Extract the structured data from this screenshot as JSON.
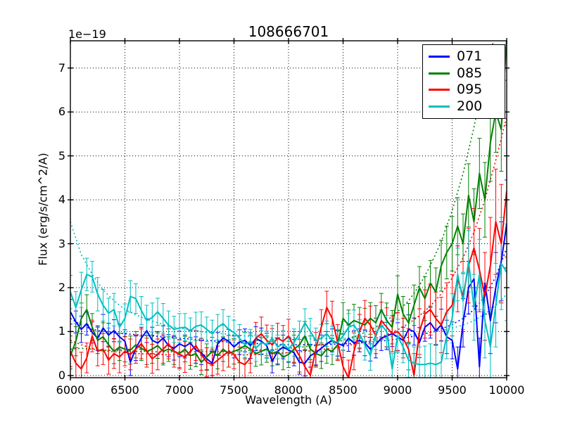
{
  "figure": {
    "title": "108666701",
    "xlabel": "Wavelength (A)",
    "ylabel": "Flux (erg/s/cm^2/A)",
    "offset_text": "1e−19",
    "background": "#ffffff"
  },
  "legend": {
    "position": "upper right",
    "items": [
      {
        "label": "071",
        "color": "#0000ff"
      },
      {
        "label": "085",
        "color": "#008000"
      },
      {
        "label": "095",
        "color": "#ff0000"
      },
      {
        "label": "200",
        "color": "#00bfbf"
      }
    ]
  },
  "chart_data": {
    "type": "line",
    "title": "108666701",
    "xlabel": "Wavelength (A)",
    "ylabel": "Flux (erg/s/cm^2/A)",
    "y_scale_factor": "1e-19",
    "xlim": [
      6000,
      10000
    ],
    "ylim": [
      -0.05,
      7.62
    ],
    "xticks": [
      6000,
      6500,
      7000,
      7500,
      8000,
      8500,
      9000,
      9500,
      10000
    ],
    "yticks": [
      0,
      1,
      2,
      3,
      4,
      5,
      6,
      7
    ],
    "grid": true,
    "grid_style": "dotted",
    "legend_position": "upper right",
    "x_start": 6000,
    "x_step": 50,
    "series": [
      {
        "name": "071",
        "color": "#0000ff",
        "style": "solid",
        "values": [
          1.45,
          1.22,
          1.05,
          1.18,
          0.98,
          0.85,
          1.08,
          0.92,
          1.02,
          0.88,
          0.78,
          0.3,
          0.62,
          0.85,
          1.02,
          0.8,
          0.74,
          0.85,
          0.68,
          0.62,
          0.72,
          0.66,
          0.74,
          0.58,
          0.52,
          0.38,
          0.28,
          0.72,
          0.85,
          0.78,
          0.65,
          0.76,
          0.8,
          0.68,
          0.84,
          0.78,
          0.68,
          0.32,
          0.55,
          0.65,
          0.58,
          0.52,
          0.3,
          0.28,
          0.45,
          0.52,
          0.62,
          0.72,
          0.8,
          0.73,
          0.68,
          0.85,
          0.74,
          0.8,
          0.74,
          0.6,
          0.7,
          0.85,
          0.9,
          0.95,
          0.88,
          0.8,
          1.05,
          1.0,
          0.75,
          1.1,
          1.2,
          1.02,
          1.15,
          0.88,
          0.8,
          0.15,
          1.2,
          2.0,
          2.2,
          0.2,
          2.1,
          1.25,
          2.0,
          2.6,
          3.45
        ],
        "errors": [
          0.28,
          0.25,
          0.3,
          0.26,
          0.24,
          0.28,
          0.31,
          0.27,
          0.25,
          0.29,
          0.26,
          0.3,
          0.28,
          0.25,
          0.27,
          0.3,
          0.26,
          0.28,
          0.25,
          0.27,
          0.29,
          0.26,
          0.28,
          0.3,
          0.27,
          0.25,
          0.28,
          0.26,
          0.3,
          0.27,
          0.25,
          0.28,
          0.26,
          0.29,
          0.27,
          0.3,
          0.28,
          0.26,
          0.29,
          0.27,
          0.28,
          0.3,
          0.27,
          0.29,
          0.26,
          0.28,
          0.3,
          0.28,
          0.26,
          0.29,
          0.27,
          0.3,
          0.28,
          0.26,
          0.29,
          0.27,
          0.3,
          0.28,
          0.31,
          0.29,
          0.32,
          0.3,
          0.33,
          0.31,
          0.34,
          0.32,
          0.35,
          0.33,
          0.36,
          0.38,
          0.42,
          0.5,
          0.55,
          0.6,
          0.62,
          0.65,
          0.7,
          0.75,
          0.8,
          0.9,
          1.0
        ]
      },
      {
        "name": "085",
        "color": "#008000",
        "style": "solid",
        "values": [
          0.45,
          0.78,
          1.3,
          1.5,
          1.1,
          0.8,
          0.88,
          0.7,
          0.55,
          0.65,
          0.6,
          0.58,
          0.7,
          0.62,
          0.55,
          0.6,
          0.68,
          0.55,
          0.6,
          0.55,
          0.5,
          0.6,
          0.45,
          0.5,
          0.3,
          0.42,
          0.55,
          0.45,
          0.6,
          0.5,
          0.55,
          0.6,
          0.68,
          0.6,
          0.5,
          0.55,
          0.6,
          0.5,
          0.55,
          0.42,
          0.48,
          0.6,
          0.7,
          0.9,
          0.6,
          0.5,
          0.45,
          0.6,
          0.55,
          0.7,
          1.3,
          1.15,
          1.25,
          1.2,
          1.15,
          1.3,
          1.2,
          1.5,
          1.25,
          1.1,
          1.85,
          1.4,
          1.2,
          1.6,
          2.0,
          1.75,
          2.1,
          1.9,
          2.5,
          2.8,
          3.0,
          3.4,
          3.0,
          4.1,
          3.5,
          4.6,
          4.0,
          5.3,
          6.0,
          5.6,
          7.7
        ],
        "errors": [
          0.3,
          0.33,
          0.35,
          0.34,
          0.31,
          0.3,
          0.32,
          0.3,
          0.28,
          0.31,
          0.29,
          0.32,
          0.3,
          0.28,
          0.3,
          0.32,
          0.29,
          0.31,
          0.28,
          0.3,
          0.32,
          0.29,
          0.31,
          0.3,
          0.28,
          0.3,
          0.32,
          0.3,
          0.28,
          0.31,
          0.29,
          0.31,
          0.3,
          0.32,
          0.29,
          0.31,
          0.3,
          0.28,
          0.31,
          0.29,
          0.3,
          0.32,
          0.3,
          0.33,
          0.3,
          0.31,
          0.29,
          0.32,
          0.3,
          0.33,
          0.36,
          0.34,
          0.37,
          0.35,
          0.38,
          0.36,
          0.39,
          0.37,
          0.4,
          0.38,
          0.42,
          0.4,
          0.44,
          0.46,
          0.48,
          0.5,
          0.52,
          0.55,
          0.58,
          0.6,
          0.62,
          0.65,
          0.68,
          0.72,
          0.75,
          0.8,
          0.85,
          0.88,
          0.92,
          0.95,
          0.98
        ]
      },
      {
        "name": "095",
        "color": "#ff0000",
        "style": "solid",
        "values": [
          0.55,
          0.28,
          0.15,
          0.4,
          0.9,
          0.55,
          0.6,
          0.35,
          0.5,
          0.42,
          0.55,
          0.48,
          0.6,
          0.72,
          0.55,
          0.38,
          0.48,
          0.6,
          0.72,
          0.55,
          0.48,
          0.42,
          0.55,
          0.68,
          0.48,
          0.3,
          0.25,
          0.35,
          0.45,
          0.55,
          0.48,
          0.3,
          0.25,
          0.4,
          0.85,
          0.95,
          0.8,
          0.7,
          0.85,
          0.78,
          0.9,
          0.65,
          0.45,
          0.2,
          0.0,
          0.6,
          1.1,
          1.55,
          1.3,
          0.75,
          0.2,
          -0.05,
          0.55,
          1.0,
          1.3,
          1.15,
          0.9,
          1.25,
          1.1,
          0.95,
          1.0,
          0.85,
          0.6,
          0.0,
          1.0,
          1.4,
          1.5,
          1.3,
          1.15,
          1.45,
          1.6,
          2.2,
          1.8,
          2.5,
          2.9,
          2.4,
          1.8,
          2.5,
          3.5,
          3.0,
          4.2
        ],
        "errors": [
          0.35,
          0.35,
          0.38,
          0.34,
          0.36,
          0.33,
          0.35,
          0.32,
          0.34,
          0.36,
          0.33,
          0.35,
          0.32,
          0.34,
          0.36,
          0.33,
          0.35,
          0.32,
          0.34,
          0.36,
          0.33,
          0.35,
          0.32,
          0.34,
          0.36,
          0.33,
          0.35,
          0.32,
          0.34,
          0.36,
          0.33,
          0.35,
          0.37,
          0.34,
          0.36,
          0.38,
          0.35,
          0.37,
          0.34,
          0.36,
          0.38,
          0.35,
          0.37,
          0.39,
          0.36,
          0.38,
          0.4,
          0.37,
          0.39,
          0.41,
          0.38,
          0.4,
          0.42,
          0.39,
          0.41,
          0.43,
          0.4,
          0.42,
          0.44,
          0.41,
          0.43,
          0.45,
          0.47,
          0.5,
          0.52,
          0.55,
          0.58,
          0.6,
          0.63,
          0.66,
          0.7,
          0.75,
          0.8,
          0.85,
          0.9,
          0.95,
          1.0,
          1.1,
          1.2,
          1.35,
          1.5
        ]
      },
      {
        "name": "200",
        "color": "#00bfbf",
        "style": "solid",
        "values": [
          1.9,
          1.55,
          1.95,
          2.3,
          2.25,
          1.85,
          1.6,
          1.42,
          1.5,
          1.1,
          1.3,
          1.8,
          1.75,
          1.48,
          1.25,
          1.32,
          1.45,
          1.3,
          1.15,
          1.05,
          1.08,
          1.1,
          1.02,
          1.12,
          1.15,
          1.05,
          0.95,
          1.1,
          1.18,
          1.05,
          0.98,
          0.85,
          0.7,
          0.78,
          0.62,
          0.75,
          0.7,
          0.85,
          0.65,
          0.72,
          0.6,
          0.75,
          0.95,
          1.2,
          1.0,
          0.8,
          0.85,
          0.95,
          0.8,
          0.75,
          0.9,
          1.1,
          1.15,
          0.95,
          0.7,
          0.45,
          0.95,
          1.15,
          1.0,
          0.15,
          0.9,
          0.65,
          0.35,
          0.28,
          0.25,
          0.25,
          0.28,
          0.25,
          0.3,
          0.9,
          1.3,
          2.3,
          1.7,
          2.6,
          1.55,
          2.3,
          1.25,
          0.65,
          1.6,
          2.55,
          2.35
        ],
        "errors": [
          0.38,
          0.36,
          0.4,
          0.37,
          0.35,
          0.38,
          0.36,
          0.34,
          0.37,
          0.35,
          0.33,
          0.36,
          0.34,
          0.32,
          0.35,
          0.33,
          0.31,
          0.34,
          0.32,
          0.3,
          0.33,
          0.31,
          0.29,
          0.32,
          0.3,
          0.28,
          0.31,
          0.29,
          0.32,
          0.3,
          0.28,
          0.31,
          0.29,
          0.27,
          0.3,
          0.28,
          0.31,
          0.29,
          0.27,
          0.3,
          0.28,
          0.31,
          0.29,
          0.32,
          0.3,
          0.28,
          0.31,
          0.29,
          0.32,
          0.3,
          0.33,
          0.31,
          0.34,
          0.32,
          0.35,
          0.33,
          0.36,
          0.34,
          0.37,
          0.35,
          0.38,
          0.36,
          0.39,
          0.37,
          0.4,
          0.42,
          0.44,
          0.46,
          0.48,
          0.52,
          0.56,
          0.6,
          0.65,
          0.7,
          0.75,
          0.8,
          0.85,
          0.9,
          0.95,
          1.05,
          1.1
        ]
      }
    ],
    "model_series": [
      {
        "name": "071-model",
        "color": "#0000ff",
        "style": "dotted",
        "x_start": 6000,
        "x_step": 100,
        "values": [
          1.3,
          1.15,
          1.05,
          1.0,
          0.97,
          0.95,
          0.93,
          0.91,
          0.89,
          0.87,
          0.85,
          0.83,
          0.81,
          0.79,
          0.77,
          0.75,
          0.74,
          0.73,
          0.72,
          0.71,
          0.7,
          0.7,
          0.7,
          0.7,
          0.71,
          0.72,
          0.73,
          0.75,
          0.77,
          0.8,
          0.83,
          0.87,
          0.92,
          0.98,
          1.06,
          1.16,
          1.3,
          1.5,
          1.8,
          2.25,
          2.9
        ]
      },
      {
        "name": "085-model",
        "color": "#008000",
        "style": "dotted",
        "x_start": 6000,
        "x_step": 100,
        "values": [
          0.6,
          0.62,
          0.6,
          0.58,
          0.57,
          0.56,
          0.55,
          0.55,
          0.54,
          0.54,
          0.54,
          0.54,
          0.54,
          0.55,
          0.55,
          0.56,
          0.57,
          0.58,
          0.59,
          0.6,
          0.62,
          0.64,
          0.67,
          0.7,
          0.74,
          0.8,
          0.88,
          0.98,
          1.1,
          1.25,
          1.45,
          1.7,
          2.05,
          2.5,
          3.05,
          3.75,
          4.6,
          5.65,
          6.9,
          7.8,
          8.4
        ]
      },
      {
        "name": "095-model",
        "color": "#ff0000",
        "style": "dotted",
        "x_start": 6000,
        "x_step": 100,
        "values": [
          0.8,
          0.7,
          0.62,
          0.57,
          0.54,
          0.52,
          0.5,
          0.49,
          0.48,
          0.47,
          0.47,
          0.46,
          0.46,
          0.46,
          0.46,
          0.47,
          0.47,
          0.48,
          0.49,
          0.5,
          0.52,
          0.54,
          0.56,
          0.59,
          0.62,
          0.66,
          0.71,
          0.77,
          0.84,
          0.93,
          1.04,
          1.18,
          1.36,
          1.58,
          1.86,
          2.22,
          2.68,
          3.26,
          4.0,
          4.9,
          5.9
        ]
      },
      {
        "name": "200-model",
        "color": "#00bfbf",
        "style": "dotted",
        "x_start": 6000,
        "x_step": 100,
        "values": [
          3.5,
          2.75,
          2.3,
          1.95,
          1.7,
          1.5,
          1.38,
          1.28,
          1.2,
          1.12,
          1.08,
          1.04,
          1.0,
          0.97,
          0.95,
          0.92,
          0.9,
          0.88,
          0.87,
          0.86,
          0.85,
          0.85,
          0.84,
          0.84,
          0.84,
          0.85,
          0.85,
          0.86,
          0.87,
          0.88,
          0.9,
          0.92,
          0.95,
          0.98,
          1.02,
          1.08,
          1.15,
          1.25,
          1.4,
          1.6,
          1.85
        ]
      }
    ]
  }
}
